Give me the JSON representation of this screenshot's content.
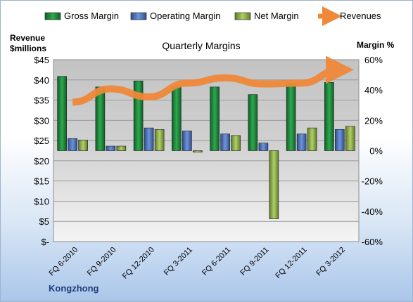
{
  "chart_data": {
    "type": "bar",
    "title": "Quarterly Margins",
    "company": "Kongzhong",
    "y_left_label": [
      "Revenue",
      "$millions"
    ],
    "y_right_label": "Margin %",
    "y_left_ticks": [
      "$45",
      "$40",
      "$35",
      "$30",
      "$25",
      "$20",
      "$15",
      "$10",
      "$5",
      "$-"
    ],
    "y_right_ticks": [
      "60%",
      "40%",
      "20%",
      "0%",
      "-20%",
      "-40%",
      "-60%"
    ],
    "y_left_range": [
      0,
      45
    ],
    "y_right_range": [
      -60,
      60
    ],
    "legend_position": "top",
    "grid": true,
    "categories": [
      "FQ 6-2010",
      "FQ 9-2010",
      "FQ 12-2010",
      "FQ 3-2011",
      "FQ 6-2011",
      "FQ 9-2011",
      "FQ 12-2011",
      "FQ 3-2012"
    ],
    "series": [
      {
        "name": "Gross Margin",
        "type": "bar",
        "axis": "right",
        "color": "#1e8a3c",
        "values": [
          49,
          42,
          46,
          42,
          42,
          37,
          44,
          45
        ]
      },
      {
        "name": "Operating Margin",
        "type": "bar",
        "axis": "right",
        "color": "#4a73c0",
        "values": [
          8,
          3,
          15,
          13,
          11,
          5,
          11,
          14
        ]
      },
      {
        "name": "Net Margin",
        "type": "bar",
        "axis": "right",
        "color": "#8fb04a",
        "values": [
          7,
          3,
          14,
          -1,
          10,
          -45,
          15,
          16
        ]
      },
      {
        "name": "Revenues",
        "type": "line",
        "axis": "left",
        "color": "#f0883a",
        "values": [
          34.5,
          37.8,
          35.8,
          39.2,
          40.5,
          39,
          39.2,
          42.5
        ]
      }
    ]
  }
}
